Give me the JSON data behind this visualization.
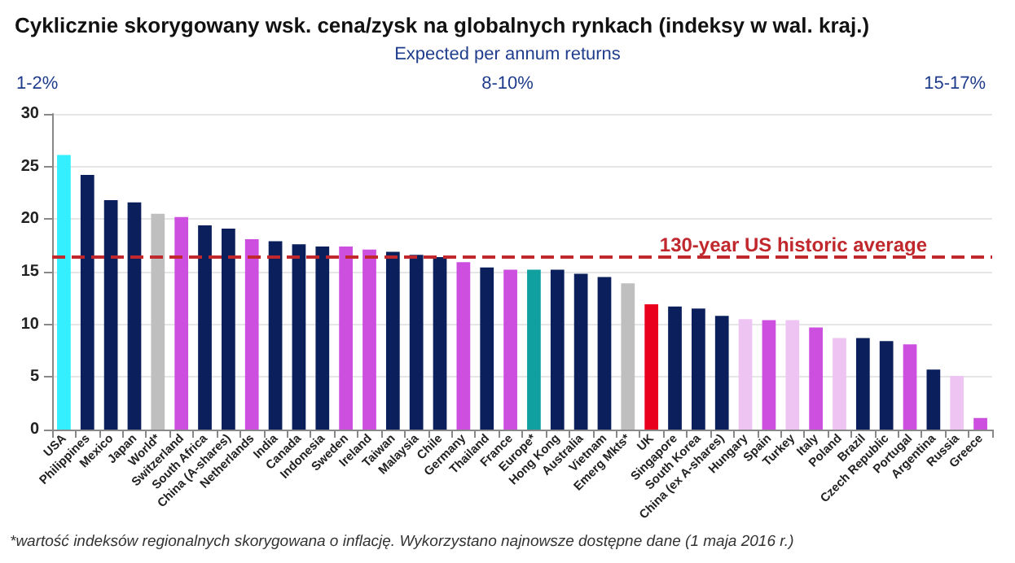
{
  "chart_data": {
    "type": "bar",
    "title": "Cyklicznie skorygowany wsk. cena/zysk na globalnych rynkach (indeksy w wal. kraj.)",
    "categories": [
      "USA",
      "Philippines",
      "Mexico",
      "Japan",
      "World*",
      "Switzerland",
      "South Africa",
      "China (A-shares)",
      "Netherlands",
      "India",
      "Canada",
      "Indonesia",
      "Sweden",
      "Ireland",
      "Taiwan",
      "Malaysia",
      "Chile",
      "Germany",
      "Thailand",
      "France",
      "Europe*",
      "Hong Kong",
      "Australia",
      "Vietnam",
      "Emerg Mkts*",
      "UK",
      "Singapore",
      "South Korea",
      "China (ex A-shares)",
      "Hungary",
      "Spain",
      "Turkey",
      "Italy",
      "Poland",
      "Brazil",
      "Czech Republic",
      "Portugal",
      "Argentina",
      "Russia",
      "Greece"
    ],
    "values": [
      26.1,
      24.2,
      21.8,
      21.6,
      20.5,
      20.2,
      19.4,
      19.1,
      18.1,
      17.9,
      17.6,
      17.4,
      17.4,
      17.1,
      16.9,
      16.6,
      16.4,
      15.9,
      15.4,
      15.2,
      15.2,
      15.2,
      14.8,
      14.5,
      13.9,
      11.9,
      11.7,
      11.5,
      10.8,
      10.5,
      10.4,
      10.4,
      9.7,
      8.7,
      8.7,
      8.4,
      8.1,
      5.7,
      5.1,
      1.1
    ],
    "colors": [
      "#33efff",
      "#0a1f5c",
      "#0a1f5c",
      "#0a1f5c",
      "#bfbfbf",
      "#cc4fe0",
      "#0a1f5c",
      "#0a1f5c",
      "#cc4fe0",
      "#0a1f5c",
      "#0a1f5c",
      "#0a1f5c",
      "#cc4fe0",
      "#cc4fe0",
      "#0a1f5c",
      "#0a1f5c",
      "#0a1f5c",
      "#cc4fe0",
      "#0a1f5c",
      "#cc4fe0",
      "#10a0a0",
      "#0a1f5c",
      "#0a1f5c",
      "#0a1f5c",
      "#bfbfbf",
      "#e8001c",
      "#0a1f5c",
      "#0a1f5c",
      "#0a1f5c",
      "#eec4f2",
      "#cc4fe0",
      "#eec4f2",
      "#cc4fe0",
      "#eec4f2",
      "#0a1f5c",
      "#0a1f5c",
      "#cc4fe0",
      "#0a1f5c",
      "#eec4f2",
      "#cc4fe0"
    ],
    "ylim": [
      0,
      30
    ],
    "yticks": [
      0,
      5,
      10,
      15,
      20,
      25,
      30
    ],
    "grid": "y",
    "ref_lines": [
      {
        "axis": "y",
        "value": 16.5,
        "label": "130-year US historic average",
        "color": "#c0282d",
        "line_style": "dashed"
      }
    ],
    "annotations": [
      "Expected per annum returns",
      "1-2%",
      "8-10%",
      "15-17%",
      "*wartość indeksów regionalnych skorygowana o inflację. Wykorzystano najnowsze dostępne dane (1 maja 2016 r.)"
    ]
  }
}
